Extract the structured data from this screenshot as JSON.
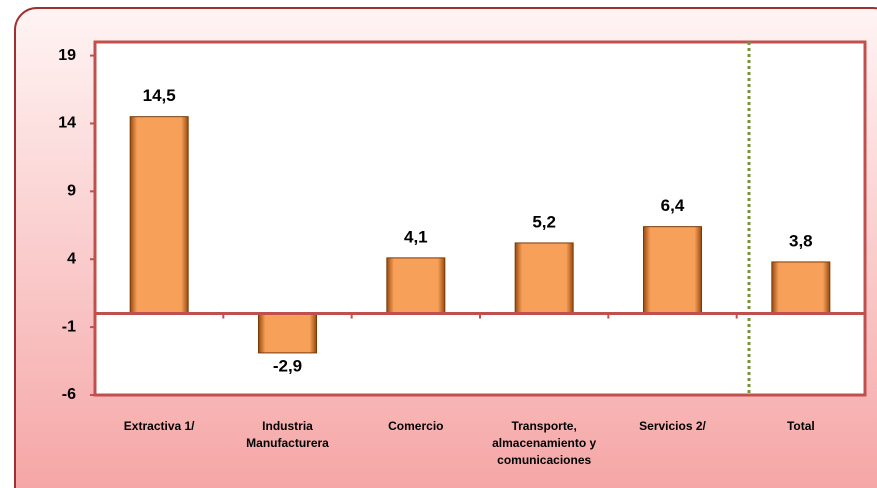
{
  "chart_data": {
    "type": "bar",
    "categories": [
      "Extractiva 1/",
      "Industria Manufacturera",
      "Comercio",
      "Transporte, almacenamiento y comunicaciones",
      "Servicios 2/",
      "Total"
    ],
    "values": [
      14.5,
      -2.9,
      4.1,
      5.2,
      6.4,
      3.8
    ],
    "value_labels": [
      "14,5",
      "-2,9",
      "4,1",
      "5,2",
      "6,4",
      "3,8"
    ],
    "color": "#f7a05a",
    "ylim": [
      -6,
      20
    ],
    "yticks": [
      -6,
      -1,
      4,
      9,
      14,
      19
    ],
    "grid": false
  }
}
